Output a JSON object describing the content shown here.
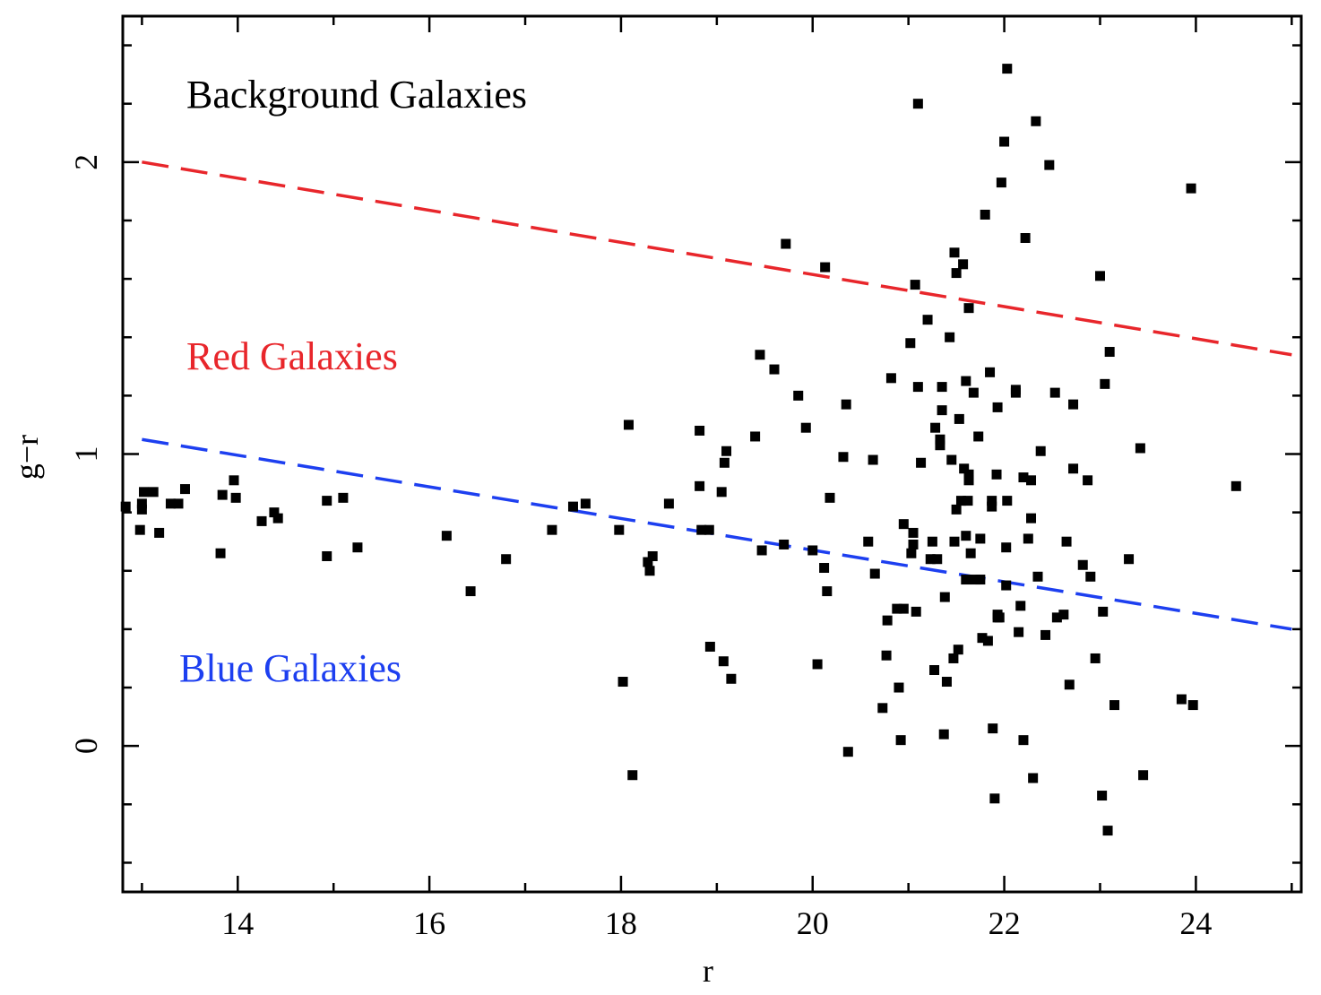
{
  "chart_data": {
    "type": "scatter",
    "title": "",
    "xlabel": "r",
    "ylabel": "g−r",
    "xlim": [
      12.8,
      25.1
    ],
    "ylim": [
      -0.5,
      2.5
    ],
    "x_ticks": [
      14,
      16,
      18,
      20,
      22,
      24
    ],
    "x_minor_step": 1,
    "y_ticks": [
      0,
      1,
      2
    ],
    "y_minor_step": 0.2,
    "region_labels": [
      {
        "text": "Background Galaxies",
        "color": "#000000"
      },
      {
        "text": "Red Galaxies",
        "color": "#e8262b"
      },
      {
        "text": "Blue Galaxies",
        "color": "#1d3ff0"
      }
    ],
    "cut_lines": [
      {
        "name": "red-cut-line",
        "color": "#e8262b",
        "x": [
          13.0,
          25.0
        ],
        "y": [
          2.0,
          1.34
        ]
      },
      {
        "name": "blue-cut-line",
        "color": "#1d3ff0",
        "x": [
          13.0,
          25.0
        ],
        "y": [
          1.05,
          0.4
        ]
      }
    ],
    "points": [
      [
        12.83,
        0.82
      ],
      [
        12.98,
        0.74
      ],
      [
        13.0,
        0.81
      ],
      [
        13.0,
        0.83
      ],
      [
        13.02,
        0.87
      ],
      [
        13.12,
        0.87
      ],
      [
        13.18,
        0.73
      ],
      [
        13.3,
        0.83
      ],
      [
        13.38,
        0.83
      ],
      [
        13.45,
        0.88
      ],
      [
        13.82,
        0.66
      ],
      [
        13.84,
        0.86
      ],
      [
        13.96,
        0.91
      ],
      [
        13.98,
        0.85
      ],
      [
        14.25,
        0.77
      ],
      [
        14.38,
        0.8
      ],
      [
        14.42,
        0.78
      ],
      [
        14.93,
        0.84
      ],
      [
        14.93,
        0.65
      ],
      [
        15.1,
        0.85
      ],
      [
        15.25,
        0.68
      ],
      [
        16.18,
        0.72
      ],
      [
        16.43,
        0.53
      ],
      [
        16.8,
        0.64
      ],
      [
        17.28,
        0.74
      ],
      [
        17.5,
        0.82
      ],
      [
        17.63,
        0.83
      ],
      [
        17.98,
        0.74
      ],
      [
        18.02,
        0.22
      ],
      [
        18.08,
        1.1
      ],
      [
        18.12,
        -0.1
      ],
      [
        18.28,
        0.63
      ],
      [
        18.3,
        0.6
      ],
      [
        18.33,
        0.65
      ],
      [
        18.5,
        0.83
      ],
      [
        18.82,
        1.08
      ],
      [
        18.82,
        0.89
      ],
      [
        18.84,
        0.74
      ],
      [
        18.92,
        0.74
      ],
      [
        18.93,
        0.34
      ],
      [
        19.05,
        0.87
      ],
      [
        19.07,
        0.29
      ],
      [
        19.08,
        0.97
      ],
      [
        19.1,
        1.01
      ],
      [
        19.15,
        0.23
      ],
      [
        19.4,
        1.06
      ],
      [
        19.45,
        1.34
      ],
      [
        19.47,
        0.67
      ],
      [
        19.6,
        1.29
      ],
      [
        19.7,
        0.69
      ],
      [
        19.72,
        1.72
      ],
      [
        19.85,
        1.2
      ],
      [
        19.93,
        1.09
      ],
      [
        20.0,
        0.67
      ],
      [
        20.05,
        0.28
      ],
      [
        20.12,
        0.61
      ],
      [
        20.13,
        1.64
      ],
      [
        20.15,
        0.53
      ],
      [
        20.18,
        0.85
      ],
      [
        20.32,
        0.99
      ],
      [
        20.35,
        1.17
      ],
      [
        20.37,
        -0.02
      ],
      [
        20.58,
        0.7
      ],
      [
        20.63,
        0.98
      ],
      [
        20.65,
        0.59
      ],
      [
        20.73,
        0.13
      ],
      [
        20.77,
        0.31
      ],
      [
        20.78,
        0.43
      ],
      [
        20.82,
        1.26
      ],
      [
        20.88,
        0.47
      ],
      [
        20.9,
        0.2
      ],
      [
        20.92,
        0.02
      ],
      [
        20.95,
        0.47
      ],
      [
        20.95,
        0.76
      ],
      [
        21.02,
        1.38
      ],
      [
        21.03,
        0.66
      ],
      [
        21.05,
        0.69
      ],
      [
        21.05,
        0.73
      ],
      [
        21.07,
        1.58
      ],
      [
        21.08,
        0.46
      ],
      [
        21.1,
        1.23
      ],
      [
        21.1,
        2.2
      ],
      [
        21.13,
        0.97
      ],
      [
        21.2,
        1.46
      ],
      [
        21.23,
        0.64
      ],
      [
        21.25,
        0.7
      ],
      [
        21.27,
        0.26
      ],
      [
        21.28,
        1.09
      ],
      [
        21.3,
        0.64
      ],
      [
        21.33,
        1.03
      ],
      [
        21.33,
        1.05
      ],
      [
        21.35,
        1.23
      ],
      [
        21.35,
        1.15
      ],
      [
        21.37,
        0.04
      ],
      [
        21.38,
        0.51
      ],
      [
        21.4,
        0.22
      ],
      [
        21.43,
        1.4
      ],
      [
        21.45,
        0.98
      ],
      [
        21.47,
        0.3
      ],
      [
        21.48,
        1.69
      ],
      [
        21.48,
        0.7
      ],
      [
        21.5,
        0.81
      ],
      [
        21.5,
        1.62
      ],
      [
        21.52,
        0.33
      ],
      [
        21.53,
        1.12
      ],
      [
        21.55,
        0.84
      ],
      [
        21.57,
        1.65
      ],
      [
        21.58,
        0.95
      ],
      [
        21.6,
        1.25
      ],
      [
        21.6,
        0.72
      ],
      [
        21.6,
        0.57
      ],
      [
        21.62,
        0.84
      ],
      [
        21.63,
        1.5
      ],
      [
        21.63,
        0.91
      ],
      [
        21.63,
        0.93
      ],
      [
        21.65,
        0.66
      ],
      [
        21.68,
        1.21
      ],
      [
        21.7,
        0.57
      ],
      [
        21.73,
        1.06
      ],
      [
        21.75,
        0.57
      ],
      [
        21.75,
        0.71
      ],
      [
        21.77,
        0.37
      ],
      [
        21.8,
        1.82
      ],
      [
        21.83,
        0.36
      ],
      [
        21.85,
        1.28
      ],
      [
        21.87,
        0.82
      ],
      [
        21.87,
        0.84
      ],
      [
        21.88,
        0.06
      ],
      [
        21.9,
        -0.18
      ],
      [
        21.92,
        0.93
      ],
      [
        21.93,
        1.16
      ],
      [
        21.93,
        0.45
      ],
      [
        21.93,
        0.44
      ],
      [
        21.95,
        0.44
      ],
      [
        21.97,
        1.93
      ],
      [
        22.0,
        2.07
      ],
      [
        22.02,
        0.55
      ],
      [
        22.02,
        0.68
      ],
      [
        22.03,
        0.84
      ],
      [
        22.03,
        2.32
      ],
      [
        22.12,
        1.21
      ],
      [
        22.12,
        1.22
      ],
      [
        22.15,
        0.39
      ],
      [
        22.17,
        0.48
      ],
      [
        22.2,
        0.02
      ],
      [
        22.2,
        0.92
      ],
      [
        22.22,
        1.74
      ],
      [
        22.25,
        0.71
      ],
      [
        22.28,
        0.78
      ],
      [
        22.28,
        0.91
      ],
      [
        22.3,
        -0.11
      ],
      [
        22.33,
        2.14
      ],
      [
        22.35,
        0.58
      ],
      [
        22.38,
        1.01
      ],
      [
        22.43,
        0.38
      ],
      [
        22.47,
        1.99
      ],
      [
        22.53,
        1.21
      ],
      [
        22.55,
        0.44
      ],
      [
        22.62,
        0.45
      ],
      [
        22.65,
        0.7
      ],
      [
        22.68,
        0.21
      ],
      [
        22.72,
        1.17
      ],
      [
        22.72,
        0.95
      ],
      [
        22.82,
        0.62
      ],
      [
        22.87,
        0.91
      ],
      [
        22.9,
        0.58
      ],
      [
        22.95,
        0.3
      ],
      [
        23.0,
        1.61
      ],
      [
        23.02,
        -0.17
      ],
      [
        23.03,
        0.46
      ],
      [
        23.05,
        1.24
      ],
      [
        23.08,
        -0.29
      ],
      [
        23.1,
        1.35
      ],
      [
        23.15,
        0.14
      ],
      [
        23.3,
        0.64
      ],
      [
        23.42,
        1.02
      ],
      [
        23.45,
        -0.1
      ],
      [
        23.85,
        0.16
      ],
      [
        23.95,
        1.91
      ],
      [
        23.97,
        0.14
      ],
      [
        24.42,
        0.89
      ]
    ]
  }
}
